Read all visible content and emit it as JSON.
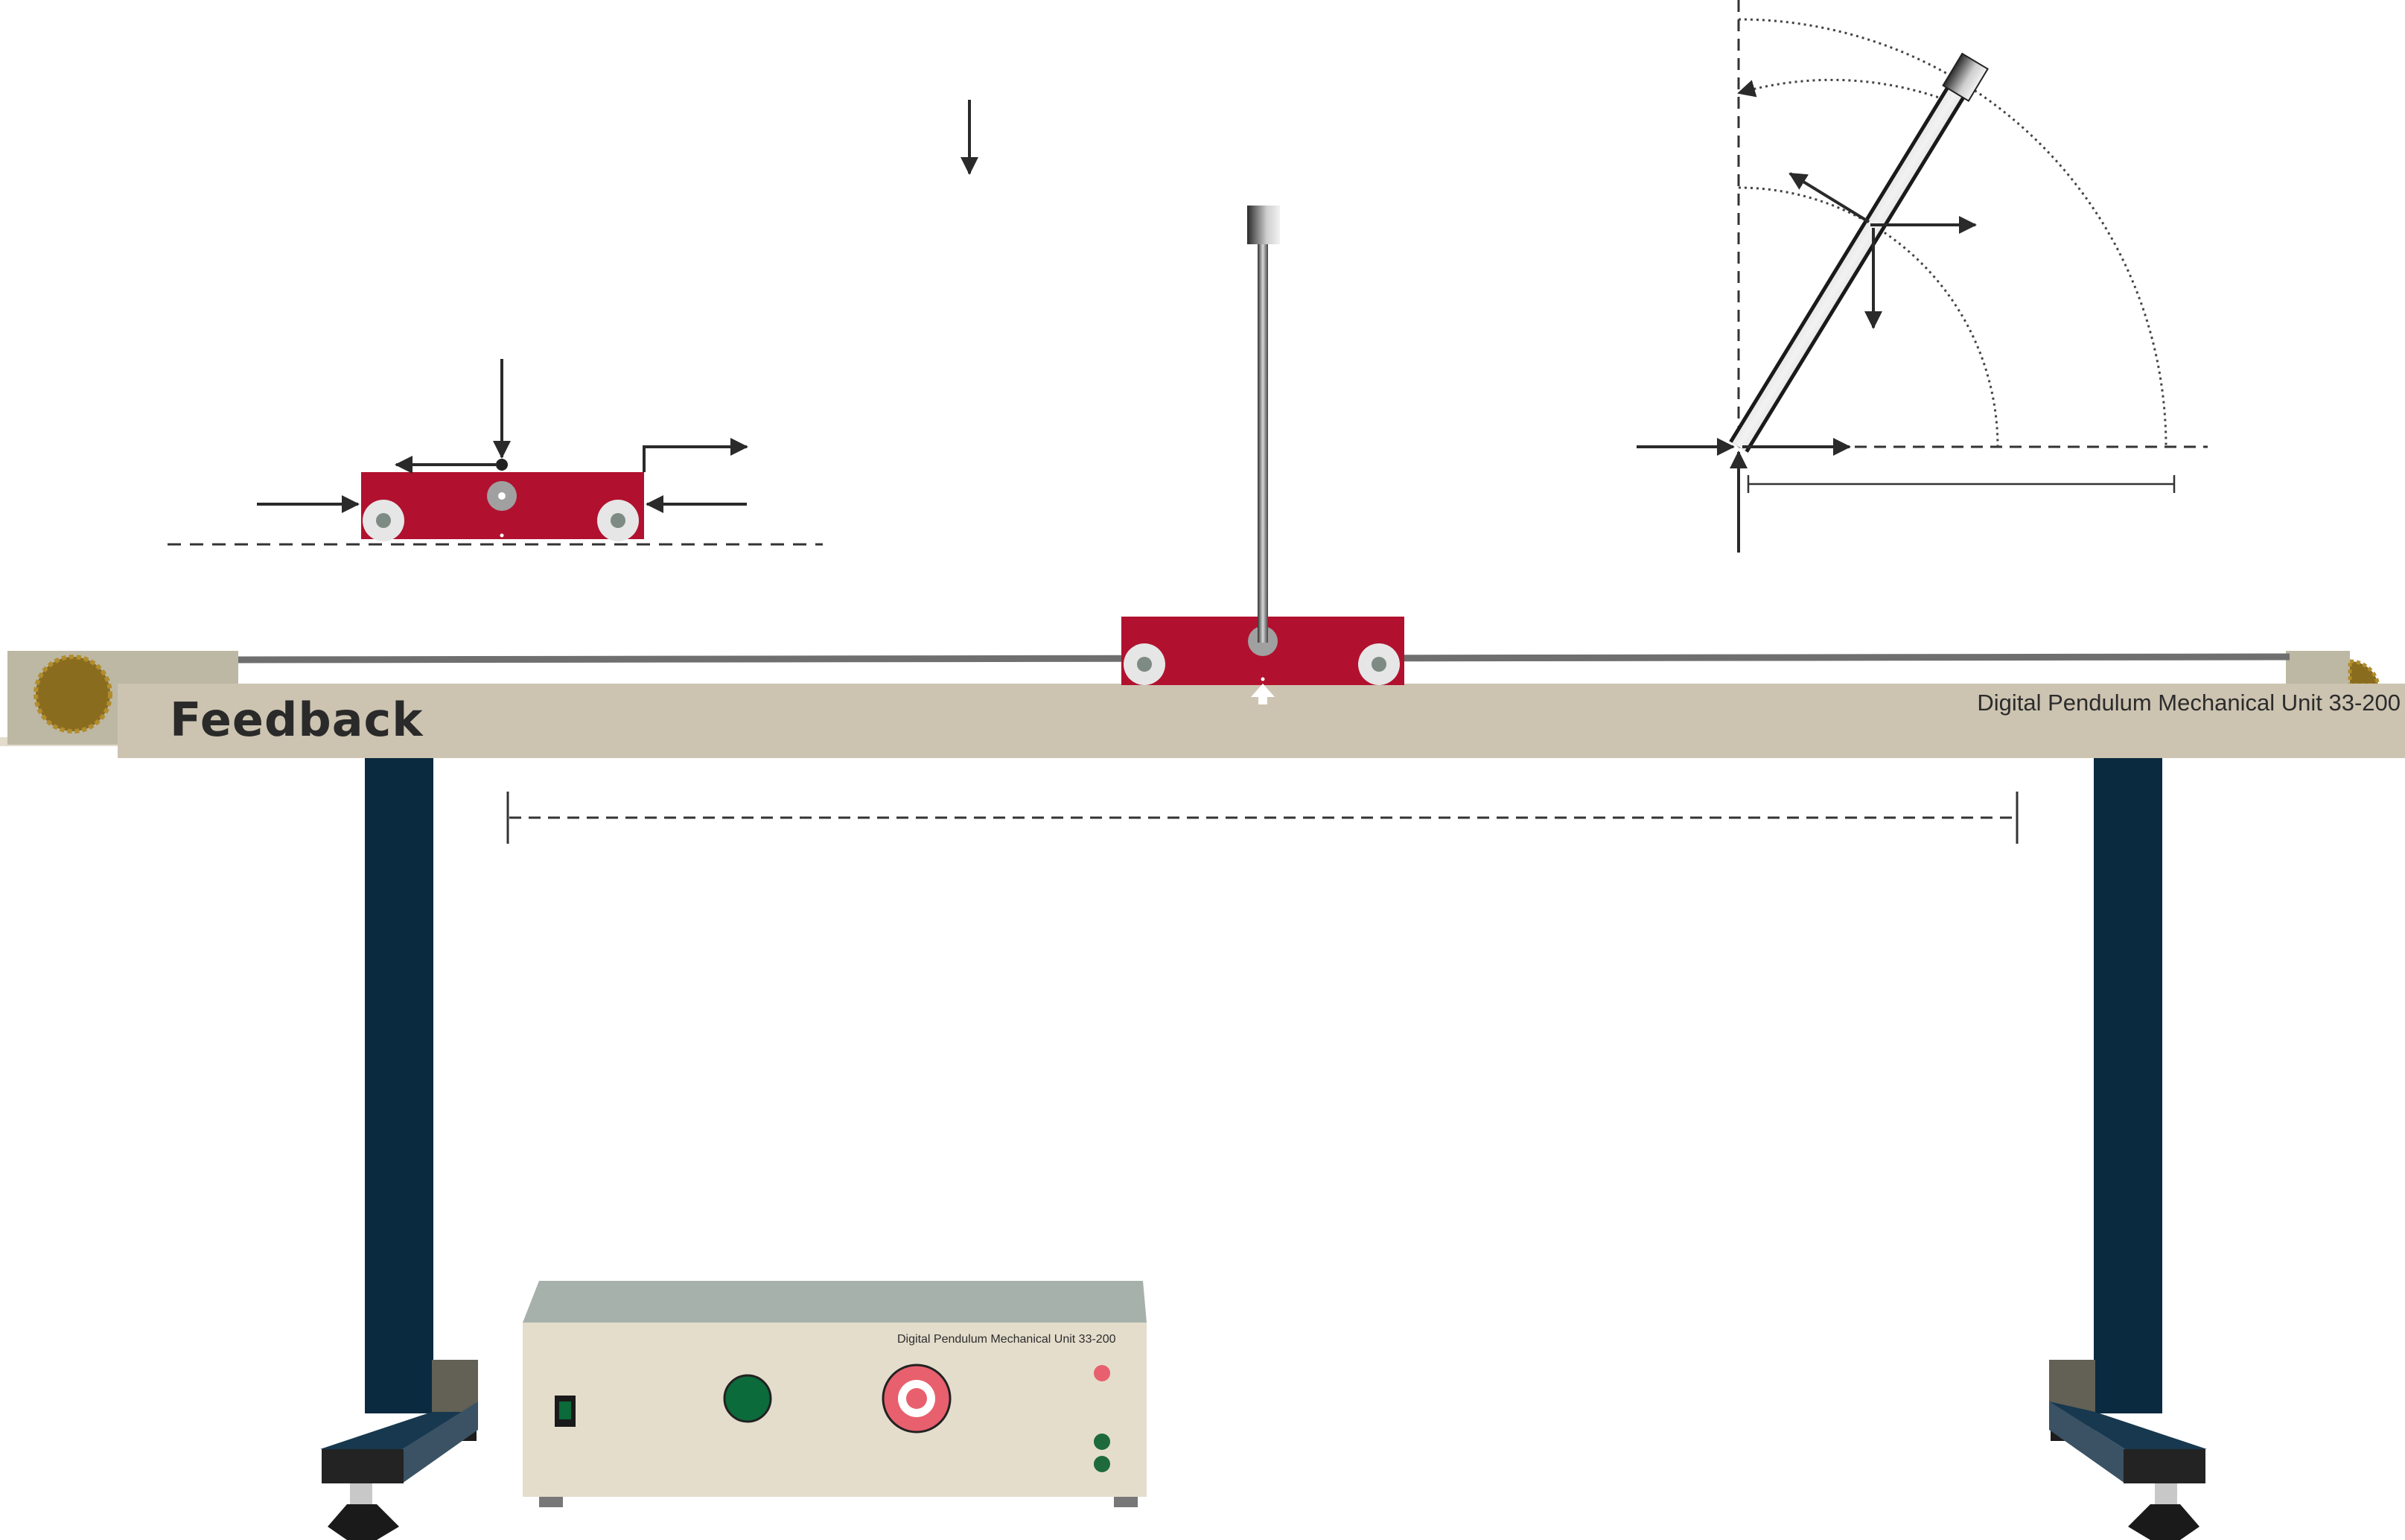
{
  "brand": {
    "logo_text": "Feedback"
  },
  "rail": {
    "label": "Digital Pendulum Mechanical Unit 33-200"
  },
  "control_box": {
    "label": "Digital Pendulum Mechanical Unit 33-200"
  },
  "colors": {
    "cart": "#b1112f",
    "rail_body": "#ccc3b1",
    "leg": "#0a2a40",
    "box_front": "#e4ddcc",
    "box_top": "#a7b1ac",
    "gear": "#8a6c1f",
    "button_green": "#0b6b3a",
    "button_red": "#e8606d",
    "led_red": "#e8606d",
    "led_green": "#1e6a3c"
  },
  "icons": [
    "gear-icon",
    "power-switch-icon",
    "start-button-icon",
    "stop-button-icon",
    "led-icon",
    "arrow-icon"
  ]
}
